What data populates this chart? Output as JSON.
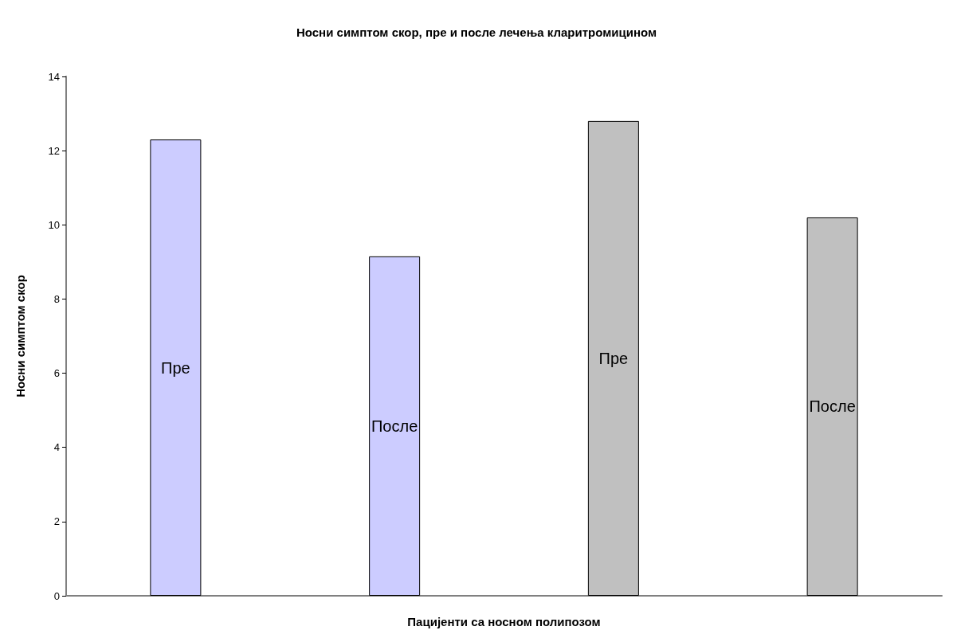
{
  "chart_data": {
    "type": "bar",
    "title": "Носни симптом скор, пре и после лечења кларитромицином",
    "xlabel": "Пацијенти са носном полипозом",
    "ylabel": "Носни симптом скор",
    "categories": [
      null,
      null,
      null,
      null
    ],
    "values": [
      12.3,
      9.15,
      12.8,
      10.2
    ],
    "colors": [
      "#ccccff",
      "#ccccff",
      "#c0c0c0",
      "#c0c0c0"
    ],
    "value_labels": [
      "Пре",
      "После",
      "Пре",
      "После"
    ],
    "ylim": [
      0,
      14
    ],
    "yticks": [
      0,
      2,
      4,
      6,
      8,
      10,
      12,
      14
    ],
    "grid": false
  }
}
